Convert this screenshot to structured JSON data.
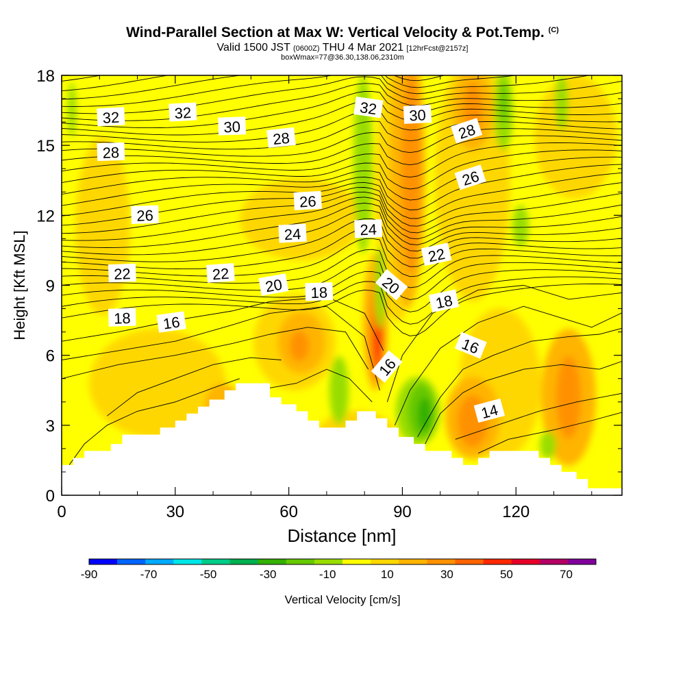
{
  "header": {
    "title": "Wind-Parallel Section at Max W: Vertical Velocity & Pot.Temp.",
    "title_mark": "(C)",
    "subtitle_a": "Valid 1500 JST",
    "subtitle_b": "(0600Z)",
    "subtitle_c": "THU 4 Mar 2021",
    "subtitle_d": "[12hrFcst@2157z]",
    "info": "boxWmax=77@36.30,138.06,2310m"
  },
  "chart_data": {
    "type": "heatmap",
    "xlabel": "Distance [nm]",
    "ylabel": "Height [Kft MSL]",
    "xlim": [
      0,
      148
    ],
    "ylim": [
      0,
      18
    ],
    "x_ticks": [
      0,
      30,
      60,
      90,
      120
    ],
    "y_ticks": [
      0,
      3,
      6,
      9,
      12,
      15,
      18
    ],
    "colorbar": {
      "label": "Vertical Velocity [cm/s]",
      "tick_labels": [
        "-90",
        "-70",
        "-50",
        "-30",
        "-10",
        "10",
        "30",
        "50",
        "70"
      ],
      "tick_values": [
        -90,
        -70,
        -50,
        -30,
        -10,
        10,
        30,
        50,
        70
      ],
      "min": -90,
      "max": 80,
      "step": 10,
      "colors": [
        "#0000ff",
        "#0064ff",
        "#00aaff",
        "#00e6e6",
        "#00cc88",
        "#00b050",
        "#33b000",
        "#66c800",
        "#99dd00",
        "#ffff00",
        "#ffd700",
        "#ffb400",
        "#ff9100",
        "#ff6400",
        "#ff2800",
        "#e60028",
        "#b40064",
        "#80009b"
      ]
    },
    "terrain": [
      [
        0,
        1.3
      ],
      [
        3,
        1.3
      ],
      [
        3,
        1.6
      ],
      [
        6,
        1.6
      ],
      [
        6,
        1.9
      ],
      [
        13,
        1.9
      ],
      [
        13,
        2.2
      ],
      [
        16,
        2.2
      ],
      [
        16,
        2.6
      ],
      [
        26,
        2.6
      ],
      [
        26,
        2.9
      ],
      [
        30,
        2.9
      ],
      [
        30,
        3.2
      ],
      [
        33,
        3.2
      ],
      [
        33,
        3.5
      ],
      [
        36,
        3.5
      ],
      [
        36,
        3.8
      ],
      [
        39,
        3.8
      ],
      [
        39,
        4.1
      ],
      [
        43,
        4.1
      ],
      [
        43,
        4.5
      ],
      [
        46,
        4.5
      ],
      [
        46,
        4.8
      ],
      [
        55,
        4.8
      ],
      [
        55,
        4.2
      ],
      [
        58,
        4.2
      ],
      [
        58,
        3.9
      ],
      [
        62,
        3.9
      ],
      [
        62,
        3.6
      ],
      [
        65,
        3.6
      ],
      [
        65,
        3.2
      ],
      [
        68,
        3.2
      ],
      [
        68,
        2.9
      ],
      [
        75,
        2.9
      ],
      [
        75,
        3.2
      ],
      [
        78,
        3.2
      ],
      [
        78,
        3.6
      ],
      [
        83,
        3.6
      ],
      [
        83,
        3.3
      ],
      [
        86,
        3.3
      ],
      [
        86,
        2.9
      ],
      [
        89,
        2.9
      ],
      [
        89,
        2.5
      ],
      [
        93,
        2.5
      ],
      [
        93,
        2.2
      ],
      [
        96,
        2.2
      ],
      [
        96,
        1.9
      ],
      [
        103,
        1.9
      ],
      [
        103,
        1.6
      ],
      [
        106,
        1.6
      ],
      [
        106,
        1.3
      ],
      [
        110,
        1.3
      ],
      [
        110,
        1.6
      ],
      [
        113,
        1.6
      ],
      [
        113,
        1.9
      ],
      [
        126,
        1.9
      ],
      [
        126,
        1.6
      ],
      [
        129,
        1.6
      ],
      [
        129,
        1.3
      ],
      [
        132,
        1.3
      ],
      [
        132,
        1.0
      ],
      [
        136,
        1.0
      ],
      [
        136,
        0.7
      ],
      [
        139,
        0.7
      ],
      [
        139,
        0.3
      ],
      [
        149,
        0.3
      ]
    ],
    "isentrope_labels": [
      {
        "text": "32",
        "x": 13,
        "y": 16.2,
        "angle": -3
      },
      {
        "text": "32",
        "x": 32,
        "y": 16.4,
        "angle": -3
      },
      {
        "text": "30",
        "x": 45,
        "y": 15.8,
        "angle": -2
      },
      {
        "text": "28",
        "x": 13,
        "y": 14.7,
        "angle": -2
      },
      {
        "text": "28",
        "x": 58,
        "y": 15.3,
        "angle": -6
      },
      {
        "text": "32",
        "x": 81,
        "y": 16.6,
        "angle": 8
      },
      {
        "text": "30",
        "x": 94,
        "y": 16.3,
        "angle": -3
      },
      {
        "text": "28",
        "x": 107,
        "y": 15.6,
        "angle": -18
      },
      {
        "text": "26",
        "x": 108,
        "y": 13.6,
        "angle": -18
      },
      {
        "text": "26",
        "x": 22,
        "y": 12.0,
        "angle": -2
      },
      {
        "text": "26",
        "x": 65,
        "y": 12.6,
        "angle": -3
      },
      {
        "text": "24",
        "x": 61,
        "y": 11.2,
        "angle": -3
      },
      {
        "text": "24",
        "x": 81,
        "y": 11.4,
        "angle": -2
      },
      {
        "text": "22",
        "x": 99,
        "y": 10.3,
        "angle": -12
      },
      {
        "text": "22",
        "x": 16,
        "y": 9.5,
        "angle": -2
      },
      {
        "text": "22",
        "x": 42,
        "y": 9.5,
        "angle": -4
      },
      {
        "text": "20",
        "x": 56,
        "y": 9.0,
        "angle": -10
      },
      {
        "text": "18",
        "x": 68,
        "y": 8.7,
        "angle": -2
      },
      {
        "text": "20",
        "x": 87,
        "y": 9.0,
        "angle": 40
      },
      {
        "text": "18",
        "x": 101,
        "y": 8.3,
        "angle": -12
      },
      {
        "text": "18",
        "x": 16,
        "y": 7.6,
        "angle": -2
      },
      {
        "text": "16",
        "x": 29,
        "y": 7.4,
        "angle": -8
      },
      {
        "text": "16",
        "x": 108,
        "y": 6.4,
        "angle": 22
      },
      {
        "text": "16",
        "x": 86,
        "y": 5.5,
        "angle": -50
      },
      {
        "text": "14",
        "x": 113,
        "y": 3.6,
        "angle": -15
      }
    ],
    "isentropes_near": [
      [
        [
          2,
          1.3
        ],
        [
          6,
          2.2
        ],
        [
          12,
          3.0
        ],
        [
          20,
          3.6
        ],
        [
          30,
          4.0
        ],
        [
          40,
          4.6
        ],
        [
          47,
          5.0
        ]
      ],
      [
        [
          55,
          4.6
        ],
        [
          62,
          4.8
        ],
        [
          70,
          5.4
        ],
        [
          76,
          5.0
        ],
        [
          82,
          4.0
        ]
      ],
      [
        [
          12,
          3.4
        ],
        [
          20,
          4.4
        ],
        [
          30,
          5.0
        ],
        [
          40,
          5.6
        ],
        [
          50,
          5.9
        ],
        [
          58,
          5.8
        ]
      ],
      [
        [
          0,
          5.0
        ],
        [
          15,
          5.6
        ],
        [
          30,
          6.0
        ],
        [
          45,
          6.5
        ],
        [
          55,
          6.9
        ],
        [
          65,
          7.2
        ],
        [
          75,
          7.0
        ],
        [
          81,
          5.4
        ]
      ],
      [
        [
          0,
          5.8
        ],
        [
          15,
          6.2
        ],
        [
          30,
          6.6
        ],
        [
          45,
          7.3
        ],
        [
          55,
          7.8
        ],
        [
          70,
          8.1
        ],
        [
          80,
          6.8
        ],
        [
          84,
          4.5
        ]
      ],
      [
        [
          0,
          6.6
        ],
        [
          15,
          7.0
        ],
        [
          30,
          7.5
        ],
        [
          45,
          7.9
        ],
        [
          55,
          8.3
        ],
        [
          70,
          8.5
        ],
        [
          80,
          7.8
        ],
        [
          85,
          6.2
        ]
      ],
      [
        [
          96,
          2.2
        ],
        [
          100,
          3.5
        ],
        [
          106,
          4.4
        ],
        [
          112,
          4.9
        ],
        [
          122,
          5.4
        ],
        [
          132,
          5.6
        ],
        [
          142,
          5.4
        ],
        [
          149,
          5.8
        ]
      ],
      [
        [
          94,
          2.5
        ],
        [
          100,
          4.2
        ],
        [
          106,
          5.4
        ],
        [
          114,
          6.0
        ],
        [
          124,
          6.6
        ],
        [
          134,
          6.8
        ],
        [
          142,
          6.9
        ],
        [
          149,
          7.2
        ]
      ],
      [
        [
          88,
          3.0
        ],
        [
          92,
          4.5
        ],
        [
          100,
          6.3
        ],
        [
          110,
          7.4
        ],
        [
          122,
          8.1
        ],
        [
          132,
          7.6
        ],
        [
          140,
          7.2
        ],
        [
          149,
          7.9
        ]
      ],
      [
        [
          86,
          4.0
        ],
        [
          90,
          6.0
        ],
        [
          98,
          7.8
        ],
        [
          110,
          8.8
        ],
        [
          122,
          9.0
        ],
        [
          134,
          8.4
        ],
        [
          149,
          8.7
        ]
      ],
      [
        [
          104,
          2.4
        ],
        [
          115,
          3.0
        ],
        [
          126,
          3.6
        ],
        [
          136,
          4.0
        ],
        [
          149,
          4.4
        ]
      ],
      [
        [
          110,
          1.8
        ],
        [
          118,
          2.4
        ],
        [
          130,
          2.8
        ],
        [
          140,
          3.2
        ],
        [
          149,
          3.6
        ]
      ]
    ]
  }
}
